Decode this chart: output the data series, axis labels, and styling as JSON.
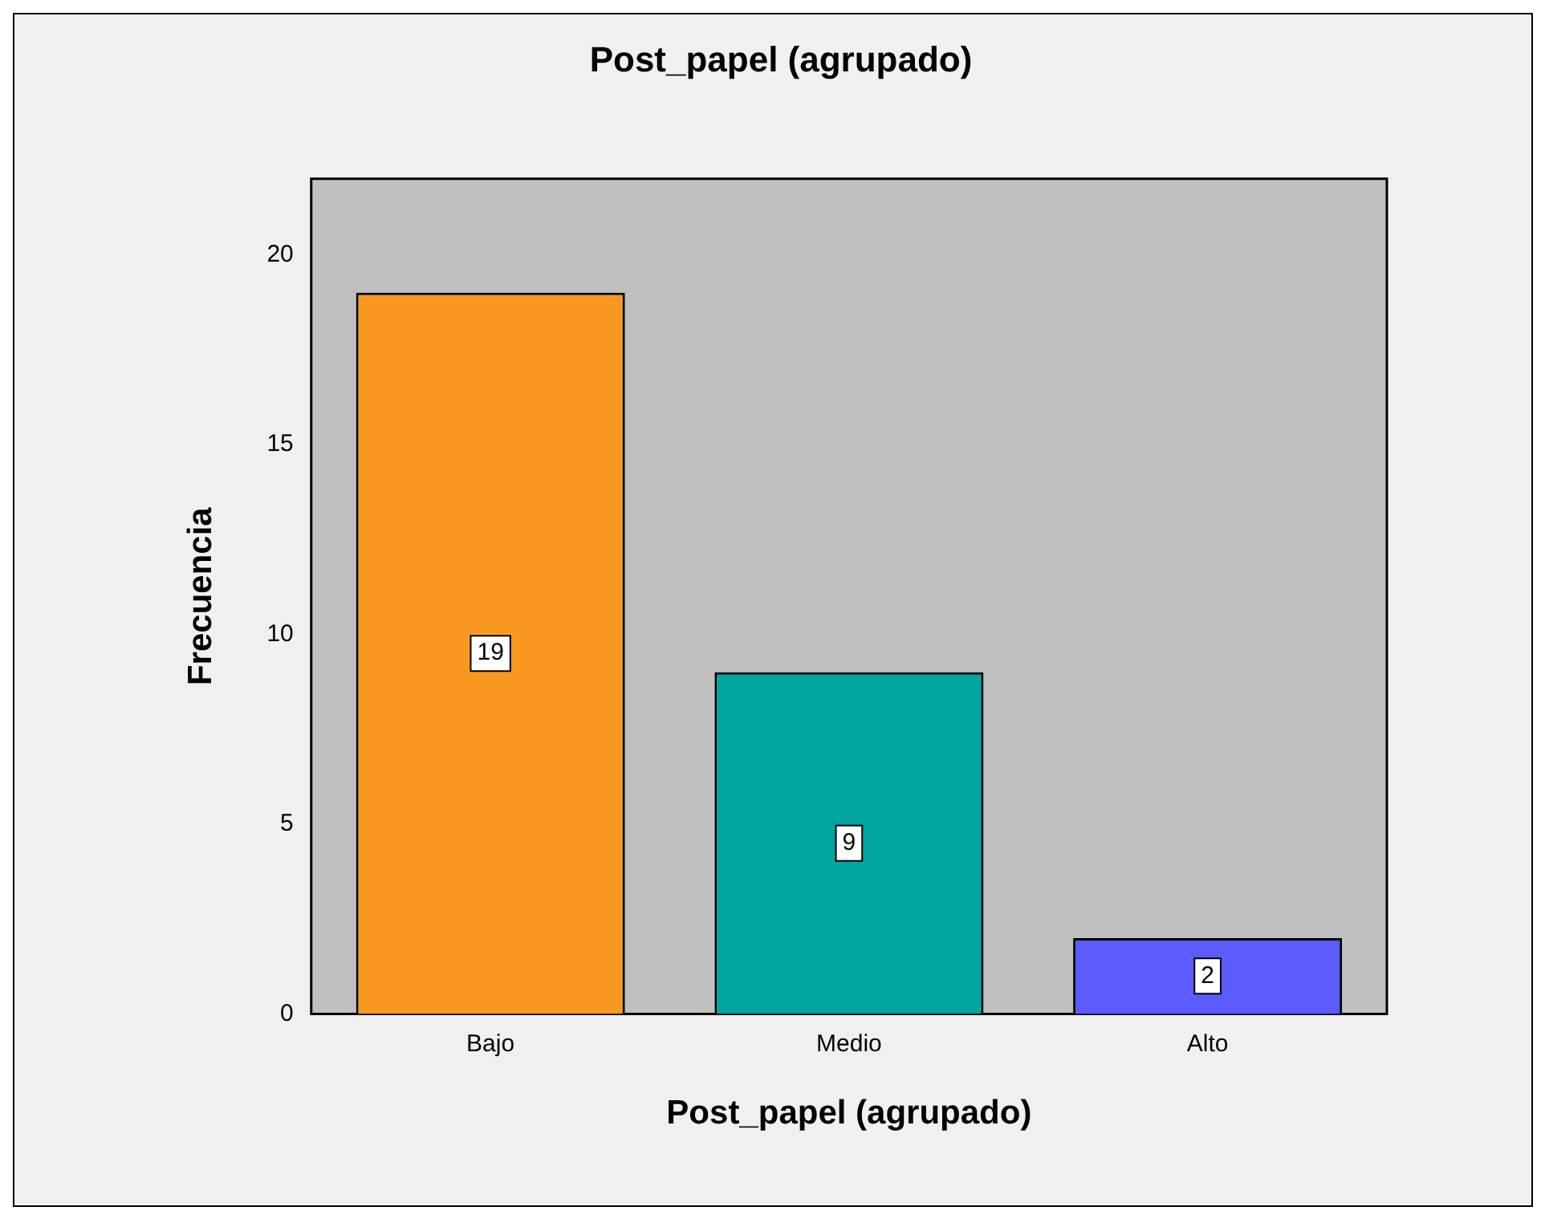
{
  "chart_data": {
    "type": "bar",
    "title": "Post_papel (agrupado)",
    "xlabel": "Post_papel (agrupado)",
    "ylabel": "Frecuencia",
    "categories": [
      "Bajo",
      "Medio",
      "Alto"
    ],
    "values": [
      19,
      9,
      2
    ],
    "colors": [
      "#f7991f",
      "#00a6a1",
      "#5b5bff"
    ],
    "ylim": [
      0,
      22
    ],
    "yticks": [
      0,
      5,
      10,
      15,
      20
    ],
    "grid": false,
    "legend": false,
    "data_labels": true
  }
}
